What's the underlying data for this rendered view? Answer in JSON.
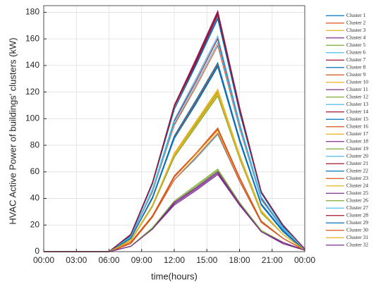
{
  "chart_data": {
    "type": "line",
    "xlabel": "time(hours)",
    "ylabel": "HVAC Active Power of buildings' clusters (kW)",
    "x": [
      0,
      6,
      8,
      10,
      12,
      14,
      16,
      18,
      20,
      22,
      24
    ],
    "xlim": [
      0,
      24
    ],
    "xticks": [
      {
        "value": 0,
        "label": "00:00"
      },
      {
        "value": 3,
        "label": "03:00"
      },
      {
        "value": 6,
        "label": "06:00"
      },
      {
        "value": 9,
        "label": "09:00"
      },
      {
        "value": 12,
        "label": "12:00"
      },
      {
        "value": 15,
        "label": "15:00"
      },
      {
        "value": 18,
        "label": "18:00"
      },
      {
        "value": 21,
        "label": "21:00"
      },
      {
        "value": 24,
        "label": "00:00"
      }
    ],
    "ylim": [
      0,
      185
    ],
    "yticks": [
      0,
      20,
      40,
      60,
      80,
      100,
      120,
      140,
      160,
      180
    ],
    "grid": true,
    "legend": "outside-right",
    "series": [
      {
        "name": "Cluster 1",
        "color": "#0072BD",
        "values": [
          0,
          0,
          12,
          51,
          107,
          141,
          176,
          106,
          44,
          19,
          2
        ]
      },
      {
        "name": "Cluster 2",
        "color": "#D95319",
        "values": [
          0,
          0,
          11,
          45,
          95,
          124,
          155,
          93,
          39,
          17,
          2
        ]
      },
      {
        "name": "Cluster 3",
        "color": "#EDB120",
        "values": [
          0,
          0,
          9,
          35,
          74,
          98,
          122,
          73,
          31,
          13,
          1
        ]
      },
      {
        "name": "Cluster 4",
        "color": "#7E2F8E",
        "values": [
          0,
          0,
          13,
          52,
          110,
          145,
          181,
          109,
          45,
          20,
          2
        ]
      },
      {
        "name": "Cluster 5",
        "color": "#77AC30",
        "values": [
          0,
          0,
          4,
          18,
          37,
          49,
          61,
          37,
          15,
          7,
          1
        ]
      },
      {
        "name": "Cluster 6",
        "color": "#4DBEEE",
        "values": [
          0,
          0,
          11,
          47,
          99,
          130,
          162,
          97,
          41,
          18,
          2
        ]
      },
      {
        "name": "Cluster 7",
        "color": "#A2142F",
        "values": [
          0,
          0,
          12,
          52,
          109,
          142,
          178,
          107,
          45,
          20,
          2
        ]
      },
      {
        "name": "Cluster 8",
        "color": "#0072BD",
        "values": [
          0,
          0,
          10,
          41,
          85,
          112,
          140,
          84,
          35,
          15,
          1
        ]
      },
      {
        "name": "Cluster 9",
        "color": "#D95319",
        "values": [
          0,
          0,
          7,
          27,
          57,
          74,
          93,
          56,
          23,
          10,
          1
        ]
      },
      {
        "name": "Cluster 10",
        "color": "#EDB120",
        "values": [
          0,
          0,
          8,
          34,
          72,
          94,
          118,
          71,
          30,
          13,
          1
        ]
      },
      {
        "name": "Cluster 11",
        "color": "#7E2F8E",
        "values": [
          0,
          0,
          4,
          17,
          36,
          47,
          59,
          35,
          15,
          6,
          1
        ]
      },
      {
        "name": "Cluster 12",
        "color": "#77AC30",
        "values": [
          0,
          0,
          8,
          35,
          73,
          96,
          120,
          72,
          30,
          13,
          1
        ]
      },
      {
        "name": "Cluster 13",
        "color": "#4DBEEE",
        "values": [
          0,
          0,
          6,
          26,
          54,
          70,
          88,
          53,
          22,
          10,
          1
        ]
      },
      {
        "name": "Cluster 14",
        "color": "#A2142F",
        "values": [
          0,
          0,
          11,
          46,
          98,
          128,
          160,
          96,
          40,
          18,
          2
        ]
      },
      {
        "name": "Cluster 15",
        "color": "#0072BD",
        "values": [
          0,
          0,
          12,
          51,
          107,
          140,
          175,
          105,
          44,
          19,
          2
        ]
      },
      {
        "name": "Cluster 16",
        "color": "#D95319",
        "values": [
          0,
          0,
          10,
          41,
          86,
          113,
          141,
          85,
          35,
          16,
          1
        ]
      },
      {
        "name": "Cluster 17",
        "color": "#EDB120",
        "values": [
          0,
          0,
          6,
          26,
          56,
          73,
          91,
          55,
          23,
          10,
          1
        ]
      },
      {
        "name": "Cluster 18",
        "color": "#7E2F8E",
        "values": [
          0,
          0,
          4,
          17,
          37,
          48,
          60,
          36,
          15,
          7,
          1
        ]
      },
      {
        "name": "Cluster 19",
        "color": "#77AC30",
        "values": [
          0,
          0,
          8,
          34,
          71,
          94,
          117,
          70,
          29,
          13,
          1
        ]
      },
      {
        "name": "Cluster 20",
        "color": "#4DBEEE",
        "values": [
          0,
          0,
          11,
          47,
          99,
          130,
          162,
          97,
          41,
          18,
          2
        ]
      },
      {
        "name": "Cluster 21",
        "color": "#A2142F",
        "values": [
          0,
          0,
          13,
          52,
          110,
          144,
          180,
          108,
          45,
          20,
          2
        ]
      },
      {
        "name": "Cluster 22",
        "color": "#0072BD",
        "values": [
          0,
          0,
          10,
          40,
          85,
          111,
          139,
          83,
          35,
          15,
          1
        ]
      },
      {
        "name": "Cluster 23",
        "color": "#D95319",
        "values": [
          0,
          0,
          6,
          26,
          54,
          71,
          89,
          53,
          22,
          10,
          1
        ]
      },
      {
        "name": "Cluster 24",
        "color": "#EDB120",
        "values": [
          0,
          0,
          8,
          35,
          74,
          97,
          121,
          73,
          30,
          13,
          1
        ]
      },
      {
        "name": "Cluster 25",
        "color": "#7E2F8E",
        "values": [
          0,
          0,
          4,
          17,
          35,
          46,
          58,
          35,
          15,
          6,
          1
        ]
      },
      {
        "name": "Cluster 26",
        "color": "#77AC30",
        "values": [
          0,
          0,
          4,
          18,
          38,
          50,
          62,
          37,
          16,
          7,
          1
        ]
      },
      {
        "name": "Cluster 27",
        "color": "#4DBEEE",
        "values": [
          0,
          0,
          11,
          46,
          96,
          126,
          157,
          94,
          39,
          17,
          2
        ]
      },
      {
        "name": "Cluster 28",
        "color": "#A2142F",
        "values": [
          0,
          0,
          13,
          52,
          109,
          143,
          179,
          107,
          45,
          20,
          2
        ]
      },
      {
        "name": "Cluster 29",
        "color": "#0072BD",
        "values": [
          0,
          0,
          10,
          41,
          87,
          114,
          142,
          85,
          36,
          16,
          1
        ]
      },
      {
        "name": "Cluster 30",
        "color": "#D95319",
        "values": [
          0,
          0,
          6,
          27,
          56,
          74,
          92,
          55,
          23,
          10,
          1
        ]
      },
      {
        "name": "Cluster 31",
        "color": "#EDB120",
        "values": [
          0,
          0,
          8,
          35,
          73,
          95,
          119,
          71,
          30,
          13,
          1
        ]
      },
      {
        "name": "Cluster 32",
        "color": "#7E2F8E",
        "values": [
          0,
          0,
          4,
          17,
          37,
          48,
          60,
          36,
          15,
          7,
          1
        ]
      }
    ]
  }
}
